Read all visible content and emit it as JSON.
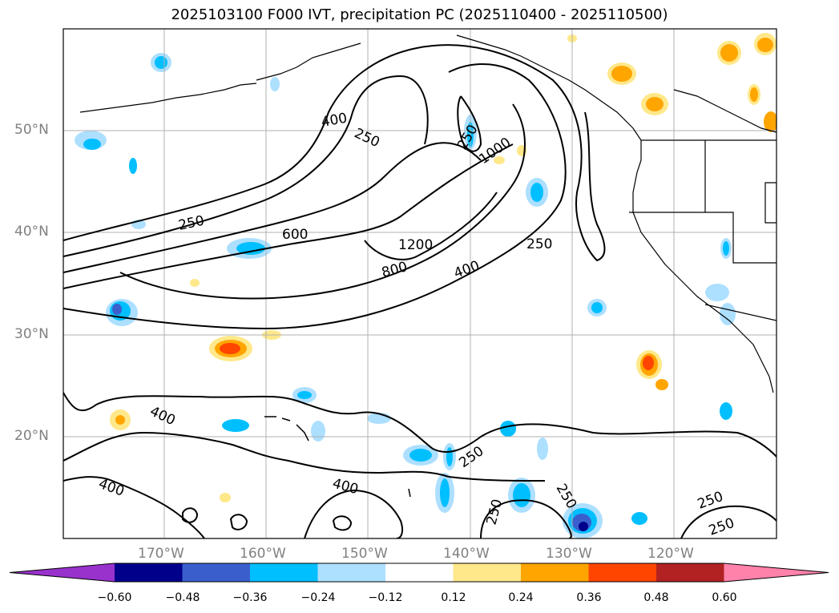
{
  "title": "2025103100 F000 IVT, precipitation PC (2025110400 - 2025110500)",
  "map": {
    "lat_labels": [
      "50°N",
      "40°N",
      "30°N",
      "20°N"
    ],
    "lon_labels": [
      "170°W",
      "160°W",
      "150°W",
      "140°W",
      "130°W",
      "120°W"
    ],
    "contour_labels": [
      "400",
      "250",
      "250",
      "600",
      "1200",
      "800",
      "400",
      "250",
      "1000",
      "250",
      "400",
      "400",
      "400",
      "250",
      "250",
      "250",
      "250",
      "250"
    ]
  },
  "colorbar": {
    "ticks": [
      "−0.60",
      "−0.48",
      "−0.36",
      "−0.24",
      "−0.12",
      "0.12",
      "0.24",
      "0.36",
      "0.48",
      "0.60"
    ],
    "colors": [
      "#9932CC",
      "#00008B",
      "#3A5FCD",
      "#00BFFF",
      "#ADDFFF",
      "#FFFFFF",
      "#FFE88A",
      "#FFA500",
      "#FF4500",
      "#B22222",
      "#FF82AB"
    ]
  }
}
